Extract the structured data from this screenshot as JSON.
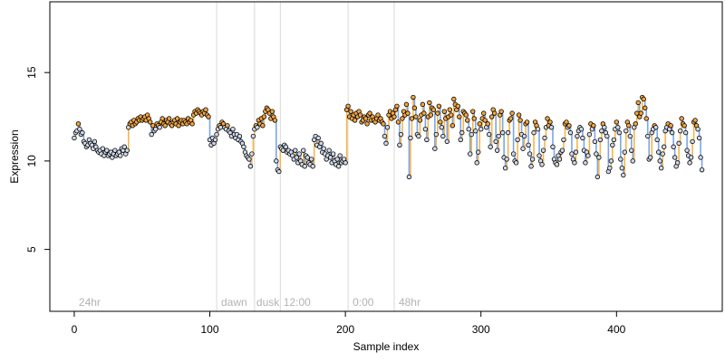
{
  "chart_data": {
    "type": "scatter",
    "xlabel": "Sample index",
    "ylabel": "Expression",
    "xlim": [
      -18,
      478
    ],
    "ylim": [
      1.5,
      19
    ],
    "x_ticks": [
      0,
      100,
      200,
      300,
      400
    ],
    "y_ticks": [
      5,
      10,
      15
    ],
    "grid": false,
    "legend": "none",
    "colors": {
      "point_fill_low": "#cfd8ea",
      "point_fill_high": "#f2a541",
      "segment_up": "#f5b54a",
      "segment_down": "#7aa6e8",
      "segment_flat": "#9e9e9e",
      "divider_line": "#d9d9d9",
      "annotation_text": "#b3b3b3"
    },
    "dividers": [
      105,
      133,
      152,
      202,
      236
    ],
    "annotations": [
      {
        "x": 2,
        "label": "24hr"
      },
      {
        "x": 107,
        "label": "dawn"
      },
      {
        "x": 133,
        "label": "dusk"
      },
      {
        "x": 153,
        "label": "12:00"
      },
      {
        "x": 204,
        "label": "0:00"
      },
      {
        "x": 238,
        "label": "48hr"
      }
    ],
    "series": [
      {
        "segment": "0-19",
        "y": [
          11.3,
          11.6,
          11.7,
          12.1,
          11.8,
          11.5,
          11.6,
          11.1,
          11.0,
          10.8,
          10.9,
          11.2,
          11.0,
          10.9,
          10.7,
          11.1,
          10.8,
          10.6,
          10.5,
          10.6
        ]
      },
      {
        "segment": "20-39",
        "y": [
          10.4,
          10.7,
          10.3,
          10.5,
          10.6,
          10.3,
          10.4,
          10.5,
          10.2,
          10.4,
          10.6,
          10.3,
          10.4,
          10.5,
          10.3,
          10.7,
          10.6,
          10.8,
          10.4,
          10.6
        ]
      },
      {
        "segment": "40-59",
        "y": [
          11.9,
          12.1,
          12.2,
          12.0,
          12.3,
          12.1,
          12.2,
          12.4,
          12.3,
          12.5,
          12.3,
          12.4,
          12.5,
          12.3,
          12.6,
          12.4,
          12.2,
          11.5,
          12.0,
          11.7
        ]
      },
      {
        "segment": "60-79",
        "y": [
          11.8,
          12.1,
          12.0,
          11.9,
          12.2,
          12.4,
          12.1,
          12.0,
          12.3,
          12.2,
          12.4,
          12.1,
          12.0,
          12.2,
          12.3,
          12.1,
          12.4,
          12.0,
          12.2,
          12.3
        ]
      },
      {
        "segment": "80-99",
        "y": [
          12.1,
          12.3,
          12.2,
          12.1,
          12.4,
          12.2,
          12.3,
          12.1,
          12.6,
          12.8,
          12.7,
          12.9,
          12.8,
          12.7,
          12.6,
          12.8,
          12.7,
          12.9,
          12.6,
          12.5
        ]
      },
      {
        "segment": "100-119",
        "y": [
          11.2,
          10.9,
          11.3,
          11.0,
          11.2,
          11.5,
          11.8,
          12.0,
          11.9,
          12.2,
          12.1,
          11.9,
          11.8,
          12.0,
          11.7,
          11.6,
          11.4,
          11.8,
          11.5,
          11.3
        ]
      },
      {
        "segment": "120-139",
        "y": [
          11.5,
          11.2,
          11.4,
          11.1,
          11.0,
          10.8,
          10.5,
          10.3,
          10.2,
          10.1,
          9.7,
          10.4,
          11.4,
          11.8,
          12.0,
          11.9,
          12.3,
          12.1,
          12.4,
          12.0
        ]
      },
      {
        "segment": "140-159",
        "y": [
          12.5,
          12.8,
          13.0,
          12.9,
          12.7,
          12.4,
          12.8,
          12.5,
          12.3,
          10.0,
          9.5,
          9.4,
          10.8,
          10.7,
          10.6,
          10.9,
          10.8,
          10.5,
          10.6,
          10.4
        ]
      },
      {
        "segment": "160-179",
        "y": [
          10.5,
          10.3,
          10.1,
          10.6,
          10.2,
          9.9,
          10.4,
          10.0,
          9.8,
          10.6,
          9.7,
          10.3,
          10.2,
          9.9,
          9.8,
          10.1,
          9.7,
          11.2,
          11.4,
          10.9
        ]
      },
      {
        "segment": "180-199",
        "y": [
          11.3,
          10.8,
          11.0,
          10.5,
          10.7,
          10.4,
          10.1,
          10.3,
          10.6,
          10.2,
          9.9,
          10.4,
          10.0,
          9.8,
          10.1,
          9.7,
          10.3,
          9.9,
          10.0,
          10.1
        ]
      },
      {
        "segment": "200-219",
        "y": [
          9.9,
          12.9,
          13.1,
          12.5,
          12.8,
          12.4,
          12.6,
          12.3,
          12.7,
          12.5,
          12.8,
          12.6,
          12.2,
          12.3,
          12.5,
          12.4,
          12.1,
          12.6,
          12.7,
          12.3
        ]
      },
      {
        "segment": "220-239",
        "y": [
          12.5,
          12.3,
          12.2,
          12.4,
          12.6,
          12.3,
          12.4,
          12.2,
          12.1,
          11.4,
          11.0,
          11.9,
          12.6,
          12.8,
          12.4,
          12.7,
          12.5,
          12.9,
          13.1,
          12.2
        ]
      },
      {
        "segment": "240-259",
        "y": [
          10.9,
          11.5,
          12.4,
          12.8,
          12.6,
          13.2,
          12.7,
          9.1,
          11.3,
          12.4,
          13.6,
          13.0,
          12.5,
          11.5,
          11.4,
          12.3,
          12.6,
          13.2,
          12.7,
          11.8
        ]
      },
      {
        "segment": "260-279",
        "y": [
          11.2,
          12.5,
          13.3,
          12.6,
          13.0,
          12.9,
          10.7,
          11.5,
          12.7,
          13.1,
          12.2,
          11.9,
          11.4,
          12.8,
          12.4,
          11.1,
          12.5,
          12.9,
          12.6,
          12.0
        ]
      },
      {
        "segment": "280-299",
        "y": [
          13.5,
          13.2,
          12.9,
          13.1,
          12.5,
          11.2,
          11.6,
          12.8,
          12.7,
          12.6,
          12.3,
          11.8,
          10.4,
          11.5,
          12.8,
          12.4,
          11.7,
          9.9,
          10.5,
          12.1
        ]
      },
      {
        "segment": "300-319",
        "y": [
          11.8,
          12.4,
          12.7,
          12.3,
          11.9,
          12.1,
          11.5,
          10.8,
          12.5,
          12.9,
          12.7,
          11.1,
          10.6,
          11.4,
          12.6,
          12.8,
          11.6,
          10.2,
          9.6,
          10.1
        ]
      },
      {
        "segment": "320-339",
        "y": [
          11.6,
          12.3,
          12.4,
          12.7,
          10.4,
          10.0,
          9.9,
          11.2,
          12.6,
          12.3,
          11.5,
          10.7,
          11.4,
          12.1,
          12.2,
          10.9,
          10.4,
          9.7,
          10.1,
          11.6
        ]
      },
      {
        "segment": "340-359",
        "y": [
          12.2,
          12.0,
          11.8,
          10.3,
          10.0,
          9.8,
          10.6,
          11.3,
          11.9,
          12.4,
          12.0,
          12.2,
          11.9,
          10.8,
          10.1,
          9.9,
          9.8,
          10.3,
          10.1,
          10.5
        ]
      },
      {
        "segment": "360-379",
        "y": [
          10.6,
          11.2,
          12.1,
          12.2,
          11.9,
          12.0,
          11.6,
          10.4,
          10.1,
          9.9,
          10.5,
          11.4,
          11.7,
          11.9,
          11.8,
          11.3,
          10.6,
          9.9,
          10.5,
          10.3
        ]
      },
      {
        "segment": "380-399",
        "y": [
          11.5,
          12.1,
          11.8,
          12.0,
          11.1,
          10.4,
          9.1,
          10.2,
          11.2,
          11.7,
          12.1,
          11.9,
          11.6,
          11.4,
          9.4,
          9.6,
          10.0,
          10.9,
          11.2,
          11.8
        ]
      },
      {
        "segment": "400-419",
        "y": [
          12.2,
          11.9,
          11.6,
          10.1,
          9.6,
          9.2,
          10.5,
          11.7,
          12.2,
          12.0,
          11.4,
          10.6,
          10.0,
          11.9,
          12.1,
          12.7,
          13.3,
          12.5,
          12.7,
          13.6
        ]
      },
      {
        "segment": "420-439",
        "y": [
          13.5,
          13.0,
          12.4,
          11.4,
          10.1,
          10.2,
          11.6,
          11.8,
          12.0,
          11.9,
          11.2,
          10.5,
          10.0,
          9.6,
          10.4,
          10.8,
          11.7,
          11.9,
          12.1,
          11.8
        ]
      },
      {
        "segment": "440-463",
        "y": [
          12.0,
          11.6,
          10.8,
          10.2,
          9.7,
          9.9,
          11.0,
          11.7,
          12.4,
          12.1,
          12.0,
          11.6,
          10.6,
          10.3,
          9.9,
          10.2,
          11.1,
          12.2,
          12.3,
          12.0,
          11.8,
          11.3,
          10.2,
          9.5
        ]
      }
    ]
  }
}
